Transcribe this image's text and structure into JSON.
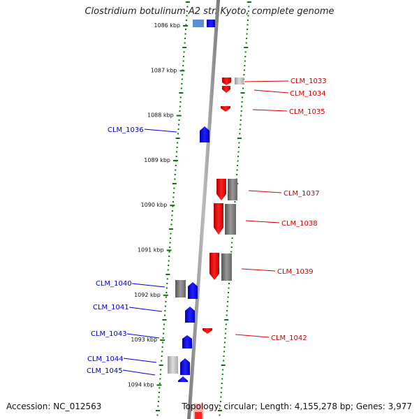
{
  "title": "Clostridium botulinum A2 str. Kyoto, complete genome",
  "footer": {
    "accession": "Accession: NC_012563",
    "summary": "Topology: circular; Length: 4,155,278 bp; Genes: 3,977"
  },
  "colors": {
    "forward": "#ff0000",
    "reverse": "#0000ff",
    "backbone": "#8c8c8c",
    "tick": "#007a00",
    "rna": "#808080"
  },
  "kbp_ticks": [
    "1086 kbp",
    "1087 kbp",
    "1088 kbp",
    "1089 kbp",
    "1090 kbp",
    "1091 kbp",
    "1092 kbp",
    "1093 kbp",
    "1094 kbp"
  ],
  "genes": {
    "reverse_labels": [
      "CLM_1036",
      "CLM_1040",
      "CLM_1041",
      "CLM_1043",
      "CLM_1044",
      "CLM_1045"
    ],
    "forward_labels": [
      "CLM_1033",
      "CLM_1034",
      "CLM_1035",
      "CLM_1037",
      "CLM_1038",
      "CLM_1039",
      "CLM_1042"
    ]
  }
}
